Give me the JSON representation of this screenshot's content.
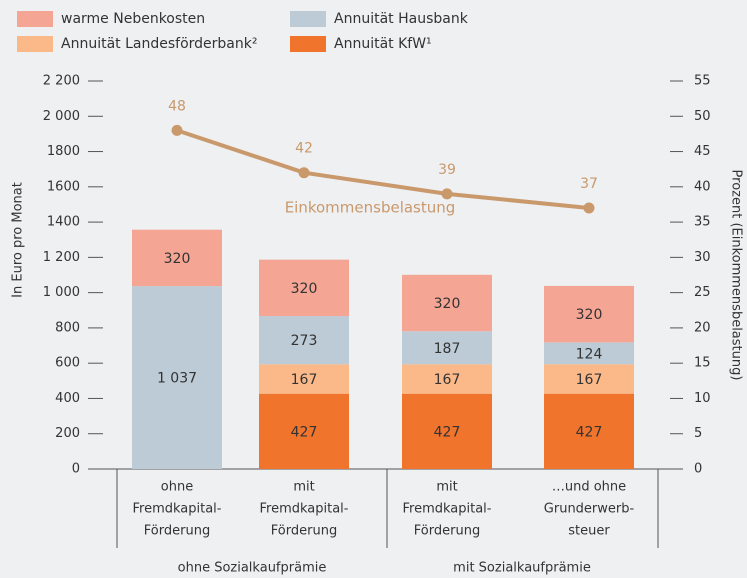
{
  "chart_data": {
    "type": "bar",
    "stacked": true,
    "categories": [
      [
        "ohne",
        "Fremdkapital-",
        "Förderung"
      ],
      [
        "mit",
        "Fremdkapital-",
        "Förderung"
      ],
      [
        "mit",
        "Fremdkapital-",
        "Förderung"
      ],
      [
        "…und ohne",
        "Grunderwerb-",
        "steuer"
      ]
    ],
    "groups": [
      "ohne Sozialkaufprämie",
      "mit Sozialkaufprämie"
    ],
    "series": [
      {
        "name": "Annuität KfW¹",
        "color": "#f0742b",
        "values": [
          null,
          427,
          427,
          427
        ]
      },
      {
        "name": "Annuität Landesförderbank²",
        "color": "#fbb98a",
        "values": [
          null,
          167,
          167,
          167
        ]
      },
      {
        "name": "Annuität Hausbank",
        "color": "#bccbd6",
        "values": [
          1037,
          273,
          187,
          124
        ],
        "value_labels": [
          "1 037",
          "273",
          "187",
          "124"
        ]
      },
      {
        "name": "warme Nebenkosten",
        "color": "#f4a594",
        "values": [
          320,
          320,
          320,
          320
        ]
      },
      {
        "name": "Einkommensbelastung",
        "type": "line",
        "axis": "y2",
        "color": "#c9996c",
        "values": [
          48,
          42,
          39,
          37
        ]
      }
    ],
    "ylabel": "In Euro pro Monat",
    "y2label": "Prozent (Einkommensbelastung)",
    "ylim": [
      0,
      2200
    ],
    "yticks": [
      0,
      200,
      400,
      600,
      800,
      {
        "value": 1000,
        "label": "1 000"
      },
      {
        "value": 1200,
        "label": "1 200"
      },
      1400,
      1600,
      1800,
      {
        "value": 2000,
        "label": "2 000"
      },
      {
        "value": 2200,
        "label": "2 200"
      }
    ],
    "y2lim": [
      0,
      55
    ],
    "y2ticks": [
      0,
      5,
      10,
      15,
      20,
      25,
      30,
      35,
      40,
      45,
      50,
      55
    ],
    "grid": false
  }
}
